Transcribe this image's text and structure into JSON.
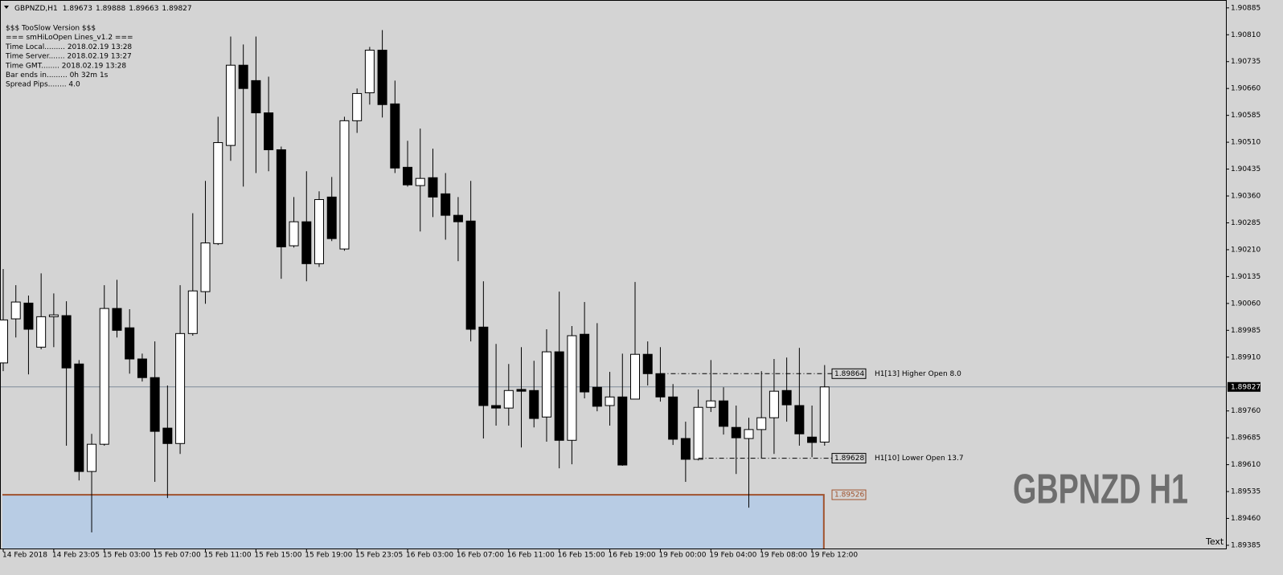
{
  "header": {
    "symbol": "GBPNZD,H1",
    "ohlc": [
      1.89673,
      1.89888,
      1.89663,
      1.89827
    ]
  },
  "info_lines": [
    "$$$ TooSlow Version $$$",
    "=== smHiLoOpen Lines_v1.2 ===",
    "Time Local......... 2018.02.19 13:28",
    "Time Server....... 2018.02.19 13:27",
    "Time GMT........ 2018.02.19 13:28",
    "Bar ends in......... 0h 32m 1s",
    "Spread Pips........ 4.0"
  ],
  "watermark": "GBPNZD H1",
  "corner_text": "Text",
  "chart_data": {
    "type": "candlestick",
    "up_color": "#ffffff",
    "down_color": "#000000",
    "categories": [
      "14 Feb 2018",
      null,
      null,
      null,
      "14 Feb 23:05",
      null,
      null,
      null,
      "15 Feb 03:00",
      null,
      null,
      null,
      "15 Feb 07:00",
      null,
      null,
      null,
      "15 Feb 11:00",
      null,
      null,
      null,
      "15 Feb 15:00",
      null,
      null,
      null,
      "15 Feb 19:00",
      null,
      null,
      null,
      "15 Feb 23:05",
      null,
      null,
      null,
      "16 Feb 03:00",
      null,
      null,
      null,
      "16 Feb 07:00",
      null,
      null,
      null,
      "16 Feb 11:00",
      null,
      null,
      null,
      "16 Feb 15:00",
      null,
      null,
      null,
      "16 Feb 19:00",
      null,
      null,
      null,
      "19 Feb 00:00",
      null,
      null,
      null,
      "19 Feb 04:00",
      null,
      null,
      null,
      "19 Feb 08:00",
      null,
      null,
      null,
      "19 Feb 12:00",
      null
    ],
    "candles": {
      "open": [
        1.89894,
        1.90017,
        1.90061,
        1.89938,
        1.90023,
        1.90026,
        1.89891,
        1.89591,
        1.89667,
        1.90046,
        1.89992,
        1.89905,
        1.89853,
        1.89712,
        1.89669,
        1.89976,
        1.90093,
        1.90227,
        1.90501,
        1.90725,
        1.90682,
        1.90592,
        1.90489,
        1.90221,
        1.90288,
        1.90171,
        1.90357,
        1.90212,
        1.9057,
        1.90648,
        1.90767,
        1.90617,
        1.9044,
        1.90389,
        1.90411,
        1.90366,
        1.90306,
        1.9029,
        1.89994,
        1.89775,
        1.89768,
        1.8982,
        1.89817,
        1.89743,
        1.89925,
        1.89678,
        1.89974,
        1.89826,
        1.89775,
        1.89799,
        1.89793,
        1.89918,
        1.89864,
        1.89799,
        1.89683,
        1.89625,
        1.8977,
        1.89788,
        1.89714,
        1.89683,
        1.89708,
        1.89741,
        1.89817,
        1.89775,
        1.89687,
        1.89673
      ],
      "high": [
        1.90156,
        1.90111,
        1.90082,
        1.90144,
        1.90088,
        1.90066,
        1.89902,
        1.89696,
        1.90111,
        1.90126,
        1.90044,
        1.8992,
        1.89954,
        1.89831,
        1.90111,
        1.90312,
        1.90402,
        1.90581,
        1.90805,
        1.90783,
        1.90805,
        1.90693,
        1.90498,
        1.90357,
        1.90429,
        1.90373,
        1.90413,
        1.90581,
        1.9066,
        1.90776,
        1.90823,
        1.90682,
        1.90514,
        1.90548,
        1.90492,
        1.90424,
        1.90357,
        1.90402,
        1.90122,
        1.89947,
        1.89891,
        1.89938,
        1.899,
        1.89988,
        1.90093,
        1.89997,
        1.90064,
        1.90005,
        1.89869,
        1.8992,
        1.9012,
        1.89954,
        1.89938,
        1.89835,
        1.8973,
        1.8982,
        1.89902,
        1.89826,
        1.89775,
        1.89741,
        1.89871,
        1.89905,
        1.89909,
        1.89936,
        1.89775,
        1.89888
      ],
      "low": [
        1.89871,
        1.89965,
        1.89862,
        1.89932,
        1.89938,
        1.89663,
        1.89566,
        1.89421,
        1.89663,
        1.89965,
        1.89864,
        1.89842,
        1.89562,
        1.89517,
        1.8964,
        1.8997,
        1.90059,
        1.90223,
        1.90458,
        1.90386,
        1.90424,
        1.90429,
        1.90129,
        1.90216,
        1.90122,
        1.90162,
        1.90234,
        1.90207,
        1.90536,
        1.90615,
        1.90579,
        1.90424,
        1.90386,
        1.90261,
        1.90301,
        1.90238,
        1.90178,
        1.89954,
        1.89683,
        1.89719,
        1.89719,
        1.89658,
        1.89714,
        1.89674,
        1.896,
        1.89611,
        1.89795,
        1.89759,
        1.89719,
        1.89607,
        1.89793,
        1.89831,
        1.89786,
        1.89665,
        1.89562,
        1.89622,
        1.89757,
        1.89694,
        1.89584,
        1.8949,
        1.89629,
        1.8964,
        1.8973,
        1.89663,
        1.89631,
        1.89663
      ],
      "close": [
        1.90014,
        1.90064,
        1.89988,
        1.90023,
        1.90028,
        1.8988,
        1.89591,
        1.89667,
        1.90046,
        1.89985,
        1.89905,
        1.89853,
        1.89703,
        1.89669,
        1.89976,
        1.90095,
        1.90229,
        1.90509,
        1.90725,
        1.9066,
        1.90592,
        1.90489,
        1.90218,
        1.90288,
        1.90171,
        1.9035,
        1.90241,
        1.9057,
        1.90646,
        1.90767,
        1.90615,
        1.90438,
        1.90391,
        1.90409,
        1.90357,
        1.90306,
        1.90288,
        1.89988,
        1.89775,
        1.89768,
        1.89817,
        1.89815,
        1.89739,
        1.89925,
        1.89678,
        1.8997,
        1.89813,
        1.89773,
        1.89799,
        1.89609,
        1.89918,
        1.89864,
        1.89799,
        1.89681,
        1.89625,
        1.8977,
        1.89788,
        1.89717,
        1.89685,
        1.89708,
        1.89741,
        1.89815,
        1.89777,
        1.89696,
        1.89672,
        1.89827
      ]
    },
    "ylim": [
      1.89376,
      1.90907
    ],
    "yticks": [
      1.90885,
      {
        "value": 1.9081,
        "label": "1.90810"
      },
      1.90735,
      {
        "value": 1.9066,
        "label": "1.90660"
      },
      1.90585,
      {
        "value": 1.9051,
        "label": "1.90510"
      },
      1.90435,
      {
        "value": 1.9036,
        "label": "1.90360"
      },
      1.90285,
      {
        "value": 1.9021,
        "label": "1.90210"
      },
      1.90135,
      {
        "value": 1.9006,
        "label": "1.90060"
      },
      1.89985,
      {
        "value": 1.8991,
        "label": "1.89910"
      },
      {
        "value": 1.8976,
        "label": "1.89760"
      },
      1.89685,
      {
        "value": 1.8961,
        "label": "1.89610"
      },
      1.89535,
      {
        "value": 1.8946,
        "label": "1.89460"
      },
      1.89385
    ],
    "grid": false,
    "last_price": 1.89827,
    "levels": [
      {
        "name": "H1[13] Higher Open 8.0",
        "value": 1.89864,
        "color": "#000000"
      },
      {
        "name": "H1[10] Lower Open 13.7",
        "value": 1.89628,
        "color": "#000000"
      }
    ],
    "zone": {
      "value": 1.89526,
      "color": "#b8cce4",
      "edge_color": "#a0522d"
    }
  }
}
